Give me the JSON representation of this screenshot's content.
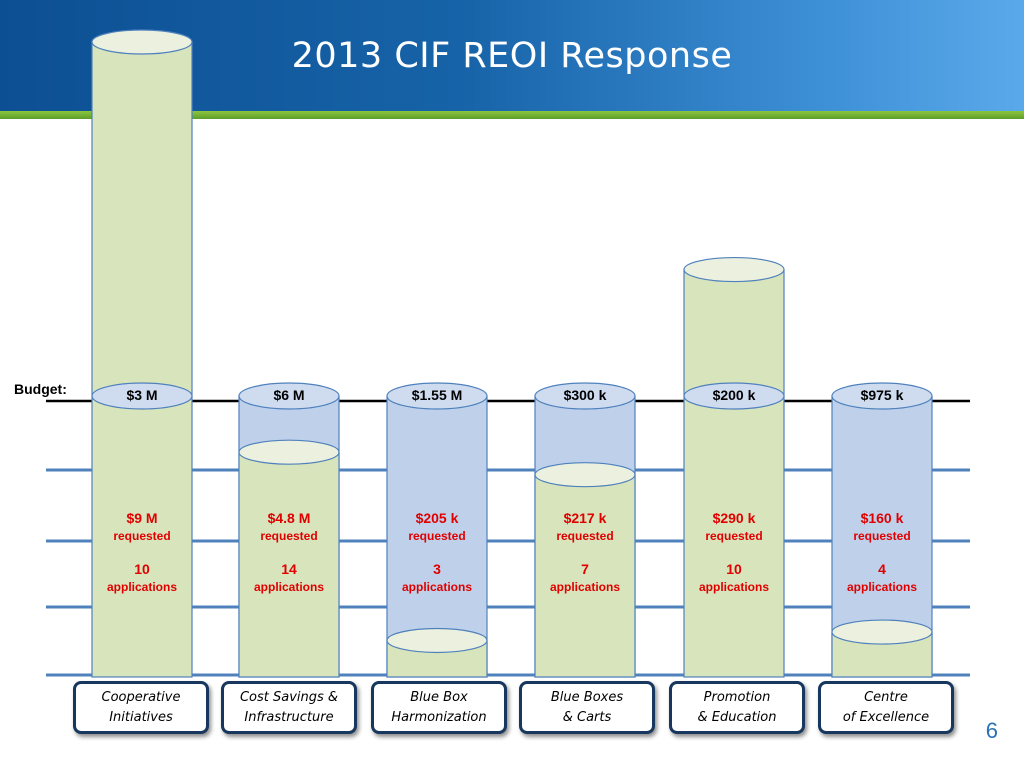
{
  "title": "2013 CIF REOI Response",
  "budget_label": "Budget:",
  "page_number": "6",
  "colors": {
    "header": "#1763a8",
    "accent_green": "#8cc63f",
    "budget_cylinder_fill": "#bfd1ea",
    "budget_cylinder_top": "#cfdcf0",
    "requested_cylinder_fill": "#d8e4bc",
    "requested_cylinder_top": "#ebf1de",
    "cylinder_edge": "#4f81bd",
    "requested_text": "#e00000",
    "category_border": "#17375e"
  },
  "chart_data": {
    "type": "bar",
    "categories": [
      [
        "Cooperative",
        "Initiatives"
      ],
      [
        "Cost Savings &",
        "Infrastructure"
      ],
      [
        "Blue Box",
        "Harmonization"
      ],
      [
        "Blue Boxes",
        "& Carts"
      ],
      [
        "Promotion",
        "& Education"
      ],
      [
        "Centre",
        "of Excellence"
      ]
    ],
    "series": [
      {
        "key": "budget",
        "labels": [
          "$3 M",
          "$6 M",
          "$1.55 M",
          "$300 k",
          "$200 k",
          "$975 k"
        ],
        "fill_ratio": [
          1,
          1,
          1,
          1,
          1,
          1
        ]
      },
      {
        "key": "requested",
        "labels": [
          "$9 M",
          "$4.8 M",
          "$205 k",
          "$217 k",
          "$290 k",
          "$160 k"
        ],
        "fill_ratio": [
          3.0,
          0.8,
          0.13,
          0.72,
          1.45,
          0.16
        ]
      }
    ],
    "requested_word": "requested",
    "applications": [
      "10",
      "14",
      "3",
      "7",
      "10",
      "4"
    ],
    "applications_word": "applications"
  }
}
